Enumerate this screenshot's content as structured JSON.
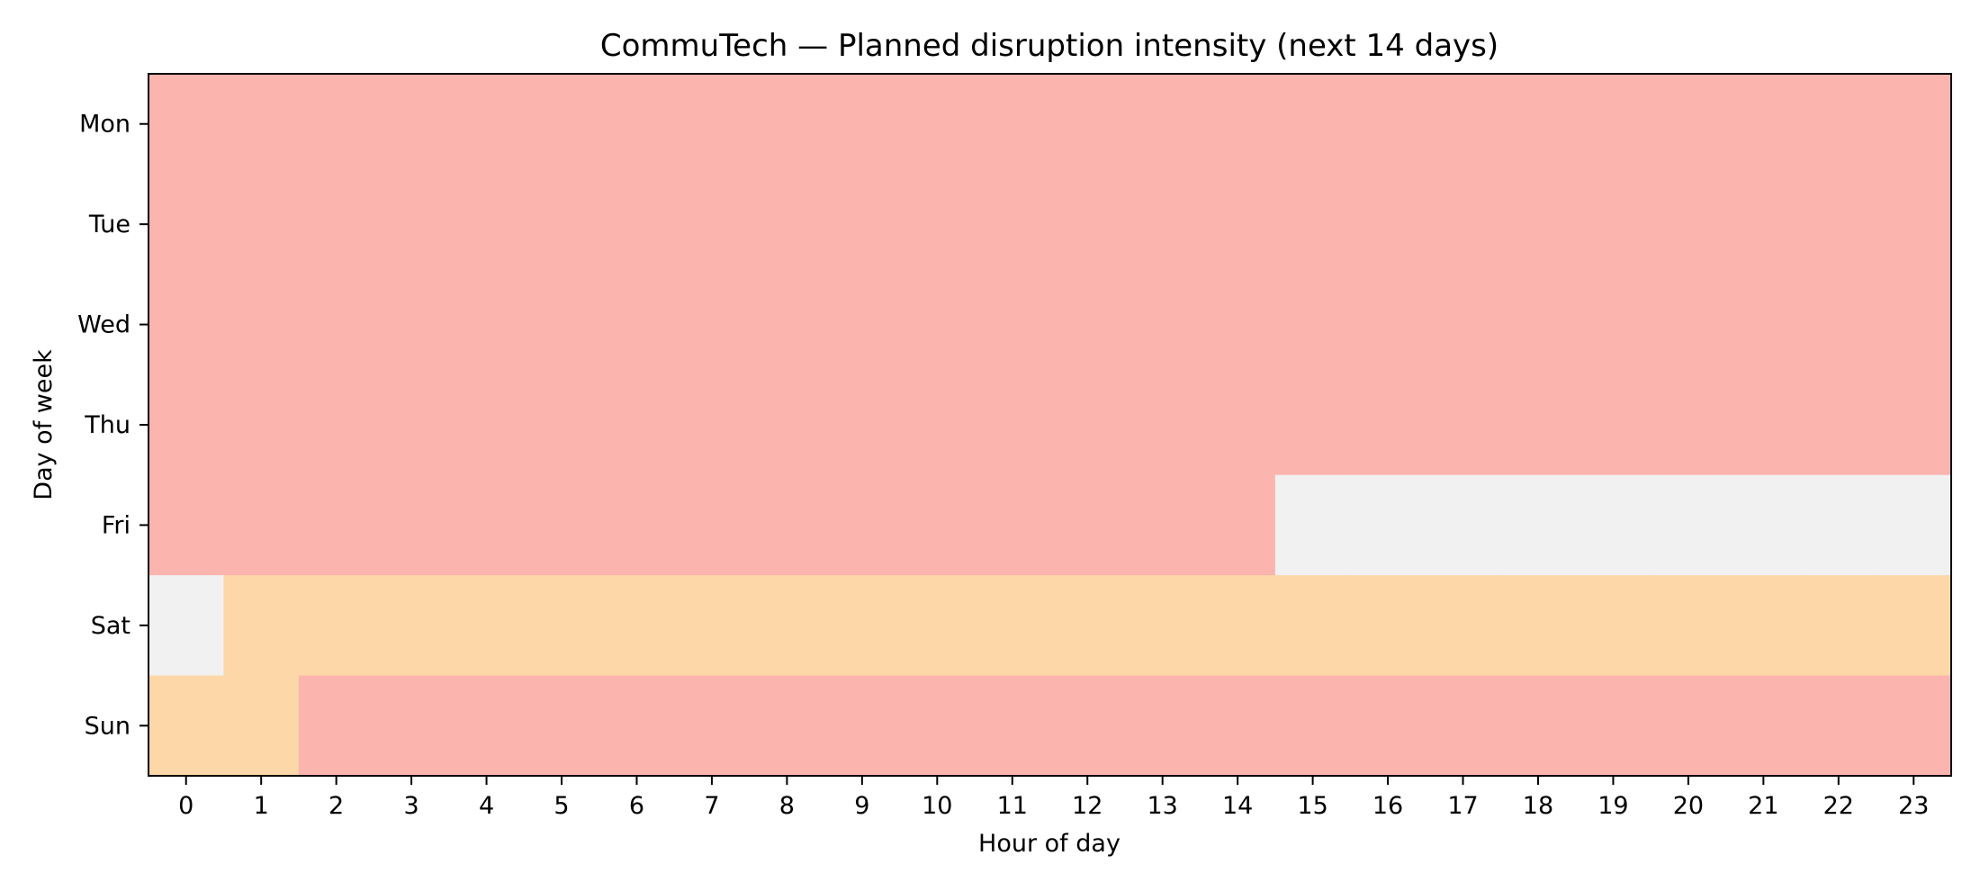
{
  "chart_data": {
    "type": "heatmap",
    "title": "CommuTech — Planned disruption intensity (next 14 days)",
    "xlabel": "Hour of day",
    "ylabel": "Day of week",
    "x": [
      0,
      1,
      2,
      3,
      4,
      5,
      6,
      7,
      8,
      9,
      10,
      11,
      12,
      13,
      14,
      15,
      16,
      17,
      18,
      19,
      20,
      21,
      22,
      23
    ],
    "y": [
      "Mon",
      "Tue",
      "Wed",
      "Thu",
      "Fri",
      "Sat",
      "Sun"
    ],
    "grid": false,
    "colors": {
      "none": "#f1f1f1",
      "medium": "#fdd7a7",
      "high": "#fbb4ae"
    },
    "values": [
      [
        "high",
        "high",
        "high",
        "high",
        "high",
        "high",
        "high",
        "high",
        "high",
        "high",
        "high",
        "high",
        "high",
        "high",
        "high",
        "high",
        "high",
        "high",
        "high",
        "high",
        "high",
        "high",
        "high",
        "high"
      ],
      [
        "high",
        "high",
        "high",
        "high",
        "high",
        "high",
        "high",
        "high",
        "high",
        "high",
        "high",
        "high",
        "high",
        "high",
        "high",
        "high",
        "high",
        "high",
        "high",
        "high",
        "high",
        "high",
        "high",
        "high"
      ],
      [
        "high",
        "high",
        "high",
        "high",
        "high",
        "high",
        "high",
        "high",
        "high",
        "high",
        "high",
        "high",
        "high",
        "high",
        "high",
        "high",
        "high",
        "high",
        "high",
        "high",
        "high",
        "high",
        "high",
        "high"
      ],
      [
        "high",
        "high",
        "high",
        "high",
        "high",
        "high",
        "high",
        "high",
        "high",
        "high",
        "high",
        "high",
        "high",
        "high",
        "high",
        "high",
        "high",
        "high",
        "high",
        "high",
        "high",
        "high",
        "high",
        "high"
      ],
      [
        "high",
        "high",
        "high",
        "high",
        "high",
        "high",
        "high",
        "high",
        "high",
        "high",
        "high",
        "high",
        "high",
        "high",
        "high",
        "none",
        "none",
        "none",
        "none",
        "none",
        "none",
        "none",
        "none",
        "none"
      ],
      [
        "none",
        "medium",
        "medium",
        "medium",
        "medium",
        "medium",
        "medium",
        "medium",
        "medium",
        "medium",
        "medium",
        "medium",
        "medium",
        "medium",
        "medium",
        "medium",
        "medium",
        "medium",
        "medium",
        "medium",
        "medium",
        "medium",
        "medium",
        "medium"
      ],
      [
        "medium",
        "medium",
        "high",
        "high",
        "high",
        "high",
        "high",
        "high",
        "high",
        "high",
        "high",
        "high",
        "high",
        "high",
        "high",
        "high",
        "high",
        "high",
        "high",
        "high",
        "high",
        "high",
        "high",
        "high"
      ]
    ]
  }
}
